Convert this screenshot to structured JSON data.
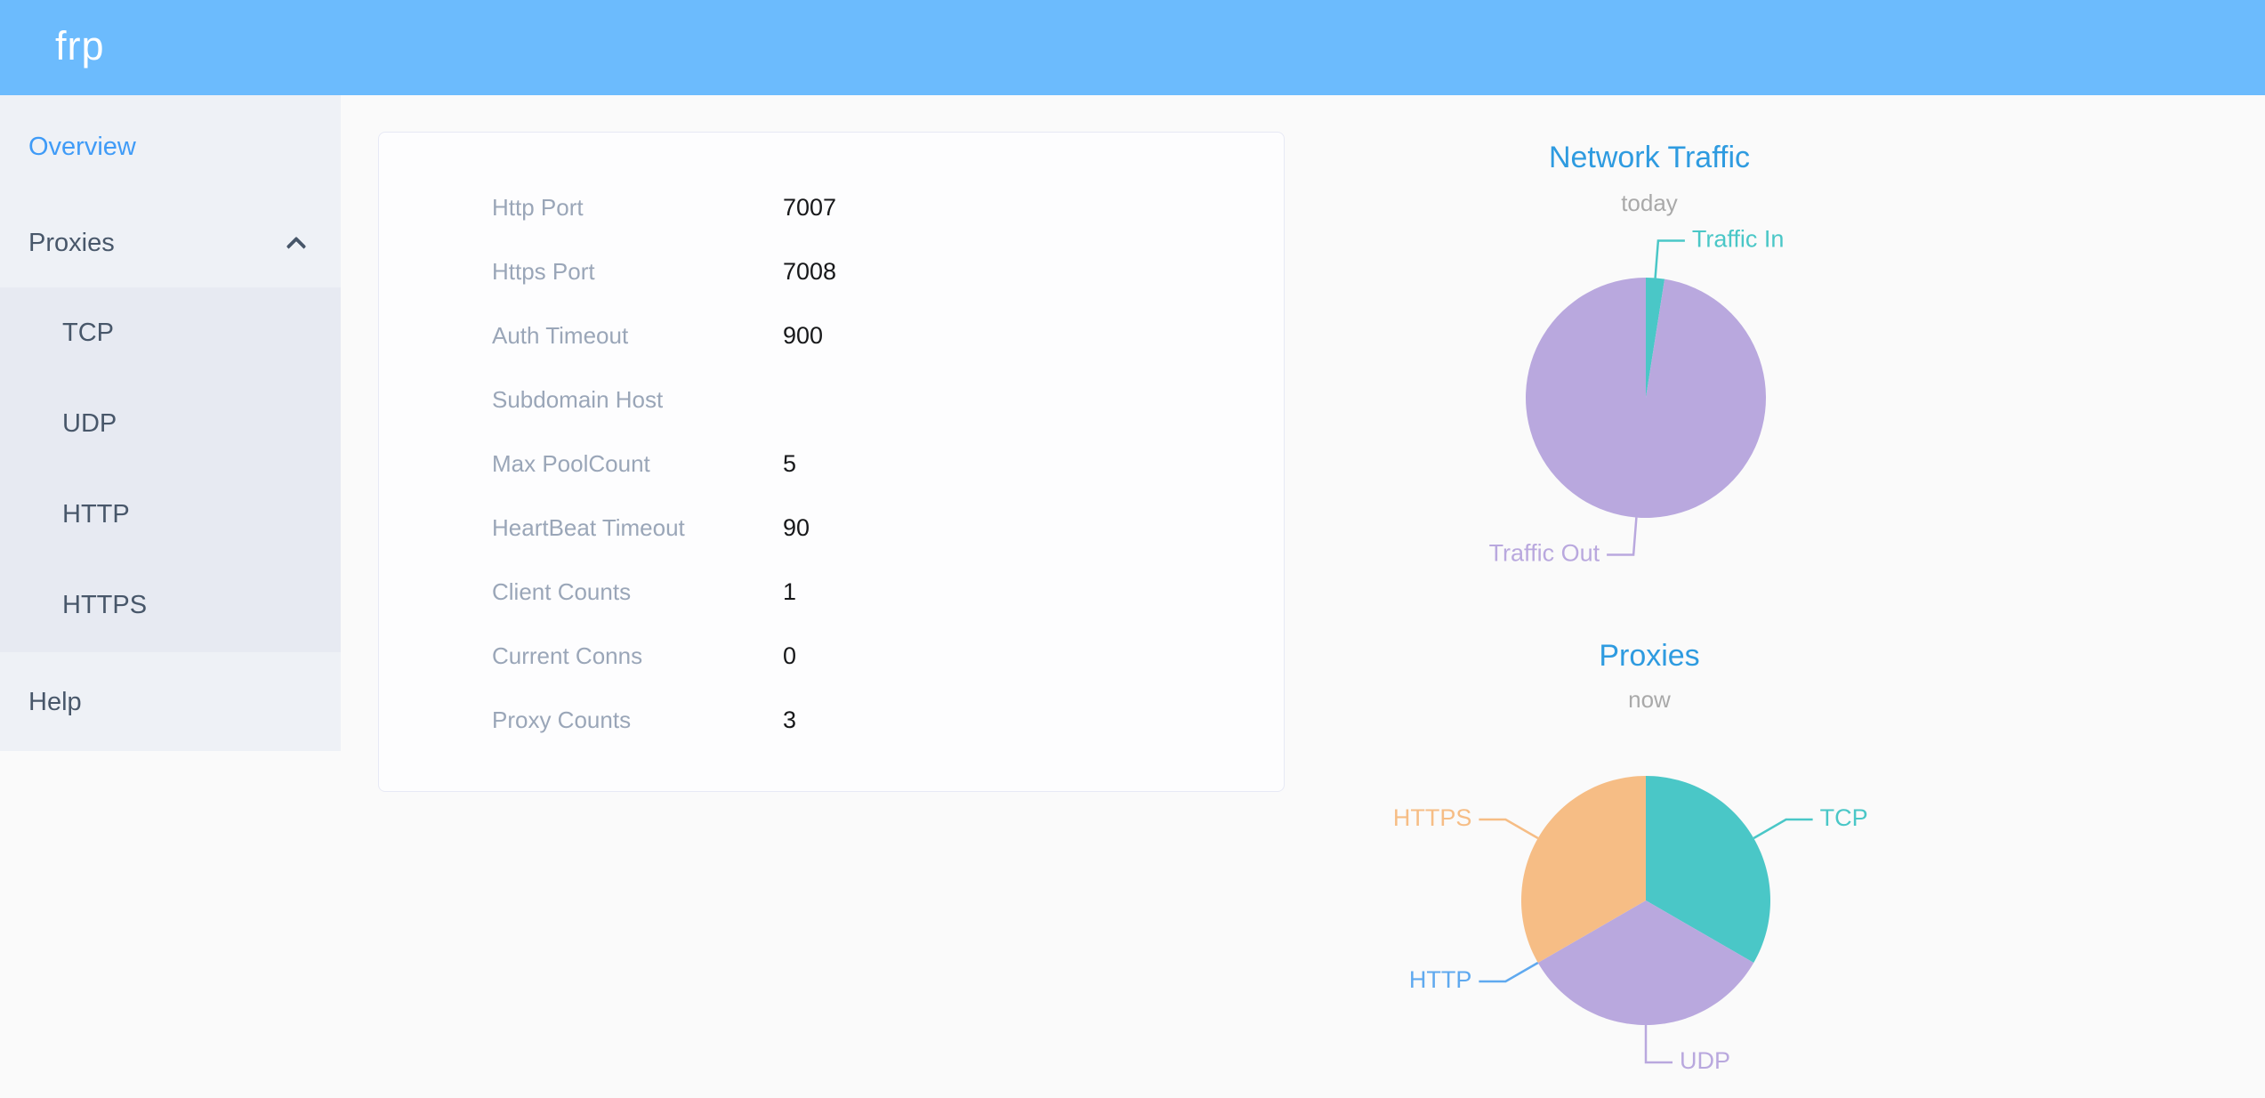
{
  "header": {
    "logo": "frp"
  },
  "sidebar": {
    "overview_label": "Overview",
    "proxies_label": "Proxies",
    "proxies_expanded": true,
    "proxy_types": [
      "TCP",
      "UDP",
      "HTTP",
      "HTTPS"
    ],
    "help_label": "Help",
    "active_item": "Overview"
  },
  "server_info": {
    "rows": [
      {
        "label": "Http Port",
        "value": "7007"
      },
      {
        "label": "Https Port",
        "value": "7008"
      },
      {
        "label": "Auth Timeout",
        "value": "900"
      },
      {
        "label": "Subdomain Host",
        "value": ""
      },
      {
        "label": "Max PoolCount",
        "value": "5"
      },
      {
        "label": "HeartBeat Timeout",
        "value": "90"
      },
      {
        "label": "Client Counts",
        "value": "1"
      },
      {
        "label": "Current Conns",
        "value": "0"
      },
      {
        "label": "Proxy Counts",
        "value": "3"
      }
    ]
  },
  "chart_data": [
    {
      "type": "pie",
      "title": "Network Traffic",
      "subtitle": "today",
      "legend_position": "none",
      "labels": "outside",
      "series": [
        {
          "name": "Traffic In",
          "value": 2.5,
          "unit": "percent",
          "color": "#4ac7c7"
        },
        {
          "name": "Traffic Out",
          "value": 97.5,
          "unit": "percent",
          "color": "#b9a8de"
        }
      ]
    },
    {
      "type": "pie",
      "title": "Proxies",
      "subtitle": "now",
      "legend_position": "none",
      "labels": "outside",
      "series": [
        {
          "name": "TCP",
          "value": 1,
          "unit": "proxies",
          "color": "#4ac7c7"
        },
        {
          "name": "UDP",
          "value": 1,
          "unit": "proxies",
          "color": "#b9a8de"
        },
        {
          "name": "HTTP",
          "value": 0,
          "unit": "proxies",
          "color": "#5fa9ef"
        },
        {
          "name": "HTTPS",
          "value": 1,
          "unit": "proxies",
          "color": "#f6bd85"
        }
      ]
    }
  ],
  "colors": {
    "header_bg": "#6cbbfd",
    "sidebar_bg": "#eef1f6",
    "submenu_bg": "#e7eaf2",
    "page_bg": "#fafafa",
    "card_bg": "#fdfdfe",
    "card_border": "#e7e9f5",
    "chart_title_blue": "#2e9be0",
    "subtitle_gray": "#a9a9a9",
    "menu_text": "#48576a",
    "active_menu_blue": "#3f9bf7",
    "info_label_gray": "#9aa6b8",
    "info_value_black": "#17181a",
    "pie_teal": "#4ac7c7",
    "pie_purple": "#b9a8de",
    "pie_blue": "#5fa9ef",
    "pie_orange": "#f6bd85"
  }
}
